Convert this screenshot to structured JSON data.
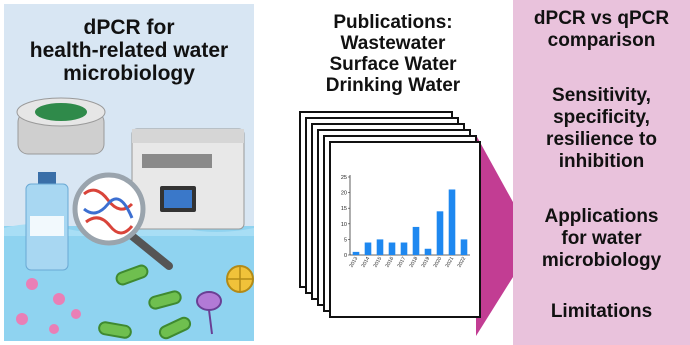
{
  "left_panel": {
    "title_lines": [
      "dPCR for",
      "health-related water",
      "microbiology"
    ]
  },
  "middle_panel": {
    "title_lines": [
      "Publications:",
      "Wastewater",
      "Surface Water",
      "Drinking Water"
    ]
  },
  "right_panel": {
    "section1_lines": [
      "dPCR vs qPCR",
      "comparison"
    ],
    "section2_lines": [
      "Sensitivity,",
      "specificity,",
      "resilience to",
      "inhibition"
    ],
    "section3_lines": [
      "Applications",
      "for water",
      "microbiology"
    ],
    "section4_lines": [
      "Limitations"
    ]
  },
  "colors": {
    "bar": "#1e88f0",
    "arrow": "#c23d93",
    "right_bg": "#e9c2dc",
    "sky": "#d8e6f3",
    "water": "#8fd3f0"
  },
  "chart_data": {
    "type": "bar",
    "categories": [
      "2013",
      "2014",
      "2015",
      "2016",
      "2017",
      "2018",
      "2019",
      "2020",
      "2021",
      "2022"
    ],
    "values": [
      1,
      4,
      5,
      4,
      4,
      9,
      2,
      14,
      21,
      5
    ],
    "ylim": [
      0,
      25
    ],
    "yticks": [
      0,
      5,
      10,
      15,
      20,
      25
    ],
    "title": "",
    "xlabel": "",
    "ylabel": ""
  }
}
